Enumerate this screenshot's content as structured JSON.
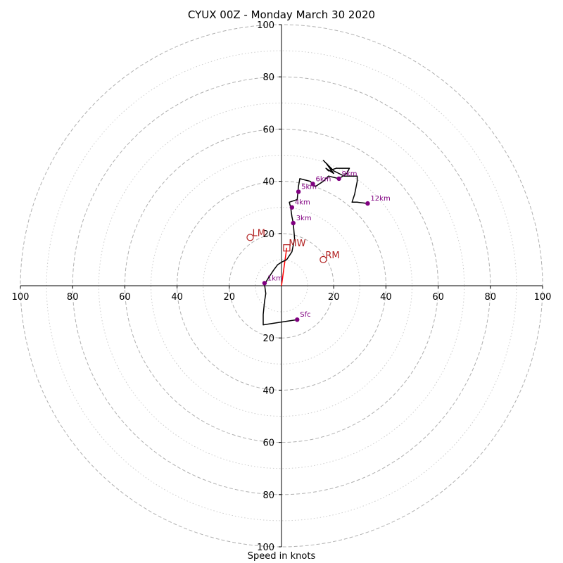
{
  "chart_data": {
    "type": "hodograph",
    "title": "CYUX 00Z - Monday March 30 2020",
    "xlabel": "Speed in knots",
    "range": [
      -100,
      100
    ],
    "ring_major_step": 20,
    "ring_minor_step": 10,
    "tick_labels": [
      "100",
      "80",
      "60",
      "40",
      "20",
      "20",
      "40",
      "60",
      "80",
      "100"
    ],
    "tick_values": [
      -100,
      -80,
      -60,
      -40,
      -20,
      20,
      40,
      60,
      80,
      100
    ],
    "colors": {
      "hodograph": "#000000",
      "height_points": "#800080",
      "motion": "#b22222",
      "mean_wind_line": "#ff0000",
      "major_ring": "#b0b0b0",
      "minor_ring": "#cccccc"
    },
    "hodograph_path": [
      [
        6,
        -13
      ],
      [
        -7,
        -15
      ],
      [
        -7,
        -11
      ],
      [
        -6.5,
        -6
      ],
      [
        -6,
        -3
      ],
      [
        -6.5,
        0.5
      ],
      [
        -5,
        3
      ],
      [
        -3,
        6
      ],
      [
        -1.5,
        8
      ],
      [
        0,
        9
      ],
      [
        2,
        10
      ],
      [
        4,
        13
      ],
      [
        5,
        18
      ],
      [
        4.5,
        24
      ],
      [
        4,
        26.5
      ],
      [
        3.5,
        30
      ],
      [
        3,
        32
      ],
      [
        6,
        33
      ],
      [
        6.5,
        38
      ],
      [
        7,
        41
      ],
      [
        11,
        40
      ],
      [
        13,
        38
      ],
      [
        16,
        40
      ],
      [
        18,
        42
      ],
      [
        22,
        41
      ],
      [
        25,
        43
      ],
      [
        26,
        45
      ],
      [
        21,
        45
      ],
      [
        18,
        44
      ],
      [
        17,
        45
      ],
      [
        20,
        43
      ],
      [
        17,
        47
      ],
      [
        16,
        48
      ],
      [
        18,
        46
      ],
      [
        20,
        44
      ],
      [
        22,
        43
      ],
      [
        24,
        42
      ],
      [
        29,
        42
      ],
      [
        29,
        40
      ],
      [
        28,
        35
      ],
      [
        27,
        32
      ],
      [
        29,
        32
      ],
      [
        33,
        31.5
      ]
    ],
    "height_points": [
      {
        "label": "Sfc",
        "u": 6,
        "v": -13
      },
      {
        "label": "1km",
        "u": -6.5,
        "v": 1
      },
      {
        "label": "3km",
        "u": 4.5,
        "v": 24
      },
      {
        "label": "4km",
        "u": 4,
        "v": 30
      },
      {
        "label": "5km",
        "u": 6.5,
        "v": 36
      },
      {
        "label": "6km",
        "u": 12,
        "v": 39
      },
      {
        "label": "9km",
        "u": 22,
        "v": 41
      },
      {
        "label": "12km",
        "u": 33,
        "v": 31.5
      }
    ],
    "storm_motion": [
      {
        "label": "LM",
        "u": -12,
        "v": 18.5
      },
      {
        "label": "RM",
        "u": 16,
        "v": 10
      }
    ],
    "mean_wind": {
      "label": "MW",
      "u": 2,
      "v": 14.5
    }
  }
}
